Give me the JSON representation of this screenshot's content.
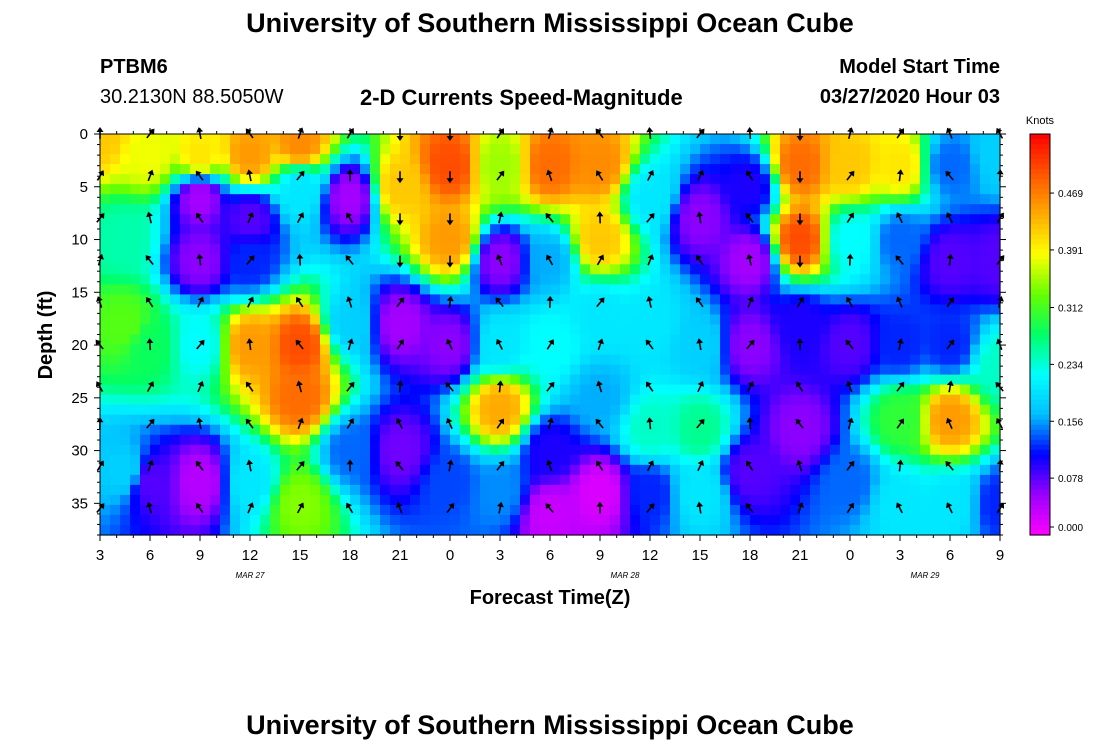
{
  "page": {
    "title_top": "University of Southern Mississippi Ocean Cube",
    "title_bottom": "University of Southern Mississippi Ocean Cube",
    "station_id": "PTBM6",
    "station_coords": "30.2130N 88.5050W",
    "subtitle": "2-D Currents Speed-Magnitude",
    "model_start_label": "Model Start Time",
    "model_start_value": "03/27/2020 Hour 03"
  },
  "chart_data": {
    "type": "heatmap",
    "title": "2-D Currents Speed-Magnitude",
    "xlabel": "Forecast Time(Z)",
    "ylabel": "Depth (ft)",
    "x_ticks": [
      "3",
      "6",
      "9",
      "12",
      "15",
      "18",
      "21",
      "0",
      "3",
      "6",
      "9",
      "12",
      "15",
      "18",
      "21",
      "0",
      "3",
      "6",
      "9"
    ],
    "date_labels": [
      {
        "text": "MAR 27",
        "at_tick": 3
      },
      {
        "text": "MAR 28",
        "at_tick": 10.5
      },
      {
        "text": "MAR 29",
        "at_tick": 16.5
      }
    ],
    "y_ticks": [
      0,
      5,
      10,
      15,
      20,
      25,
      30,
      35
    ],
    "ylim": [
      0,
      38
    ],
    "colorbar": {
      "label": "Knots",
      "ticks": [
        "0.000",
        "0.078",
        "0.156",
        "0.234",
        "0.312",
        "0.391",
        "0.469"
      ],
      "colors": [
        "#ff00ff",
        "#9a00ff",
        "#0000ff",
        "#00bfff",
        "#00ffff",
        "#00ff66",
        "#66ff00",
        "#ffff00",
        "#ffaa00",
        "#ff5500",
        "#ff0000"
      ]
    },
    "arrow_depths_ft": [
      0,
      4,
      8,
      12,
      16,
      20,
      24,
      27.5,
      31.5,
      35.5
    ],
    "value_points": [
      {
        "t": 0,
        "d": 0,
        "v": 0.42
      },
      {
        "t": 0.5,
        "d": 10,
        "v": 0.25
      },
      {
        "t": 0.5,
        "d": 18,
        "v": 0.32
      },
      {
        "t": 0.5,
        "d": 32,
        "v": 0.18
      },
      {
        "t": 1,
        "d": 2,
        "v": 0.38
      },
      {
        "t": 1,
        "d": 20,
        "v": 0.28
      },
      {
        "t": 1,
        "d": 33,
        "v": 0.08
      },
      {
        "t": 2,
        "d": 2,
        "v": 0.4
      },
      {
        "t": 2,
        "d": 6,
        "v": 0.05
      },
      {
        "t": 2,
        "d": 12,
        "v": 0.06
      },
      {
        "t": 2,
        "d": 20,
        "v": 0.22
      },
      {
        "t": 2,
        "d": 33,
        "v": 0.04
      },
      {
        "t": 3,
        "d": 2,
        "v": 0.45
      },
      {
        "t": 3,
        "d": 8,
        "v": 0.08
      },
      {
        "t": 3,
        "d": 12,
        "v": 0.12
      },
      {
        "t": 3,
        "d": 20,
        "v": 0.45
      },
      {
        "t": 3,
        "d": 33,
        "v": 0.2
      },
      {
        "t": 4,
        "d": 1,
        "v": 0.46
      },
      {
        "t": 4,
        "d": 5,
        "v": 0.2
      },
      {
        "t": 4,
        "d": 20,
        "v": 0.5
      },
      {
        "t": 4,
        "d": 25,
        "v": 0.48
      },
      {
        "t": 4,
        "d": 35,
        "v": 0.34
      },
      {
        "t": 5,
        "d": 6,
        "v": 0.05
      },
      {
        "t": 5,
        "d": 18,
        "v": 0.18
      },
      {
        "t": 5,
        "d": 30,
        "v": 0.14
      },
      {
        "t": 6,
        "d": 5,
        "v": 0.42
      },
      {
        "t": 6,
        "d": 18,
        "v": 0.05
      },
      {
        "t": 6,
        "d": 30,
        "v": 0.07
      },
      {
        "t": 7,
        "d": 3,
        "v": 0.5
      },
      {
        "t": 7,
        "d": 10,
        "v": 0.45
      },
      {
        "t": 7,
        "d": 20,
        "v": 0.06
      },
      {
        "t": 7,
        "d": 33,
        "v": 0.13
      },
      {
        "t": 8,
        "d": 3,
        "v": 0.35
      },
      {
        "t": 8,
        "d": 12,
        "v": 0.06
      },
      {
        "t": 8,
        "d": 20,
        "v": 0.2
      },
      {
        "t": 8,
        "d": 26,
        "v": 0.44
      },
      {
        "t": 8,
        "d": 34,
        "v": 0.15
      },
      {
        "t": 9,
        "d": 3,
        "v": 0.48
      },
      {
        "t": 9,
        "d": 12,
        "v": 0.16
      },
      {
        "t": 9,
        "d": 20,
        "v": 0.22
      },
      {
        "t": 9,
        "d": 30,
        "v": 0.1
      },
      {
        "t": 9,
        "d": 36,
        "v": 0.03
      },
      {
        "t": 10,
        "d": 3,
        "v": 0.46
      },
      {
        "t": 10,
        "d": 10,
        "v": 0.42
      },
      {
        "t": 10,
        "d": 17,
        "v": 0.2
      },
      {
        "t": 10,
        "d": 25,
        "v": 0.16
      },
      {
        "t": 10,
        "d": 34,
        "v": 0.02
      },
      {
        "t": 11,
        "d": 6,
        "v": 0.2
      },
      {
        "t": 11,
        "d": 18,
        "v": 0.2
      },
      {
        "t": 11,
        "d": 28,
        "v": 0.24
      },
      {
        "t": 11,
        "d": 34,
        "v": 0.12
      },
      {
        "t": 12,
        "d": 8,
        "v": 0.06
      },
      {
        "t": 12,
        "d": 20,
        "v": 0.18
      },
      {
        "t": 12,
        "d": 28,
        "v": 0.26
      },
      {
        "t": 12,
        "d": 34,
        "v": 0.2
      },
      {
        "t": 13,
        "d": 5,
        "v": 0.1
      },
      {
        "t": 13,
        "d": 12,
        "v": 0.05
      },
      {
        "t": 13,
        "d": 20,
        "v": 0.06
      },
      {
        "t": 13,
        "d": 32,
        "v": 0.08
      },
      {
        "t": 14,
        "d": 3,
        "v": 0.48
      },
      {
        "t": 14,
        "d": 10,
        "v": 0.5
      },
      {
        "t": 14,
        "d": 18,
        "v": 0.1
      },
      {
        "t": 14,
        "d": 28,
        "v": 0.06
      },
      {
        "t": 15,
        "d": 3,
        "v": 0.42
      },
      {
        "t": 15,
        "d": 10,
        "v": 0.22
      },
      {
        "t": 15,
        "d": 20,
        "v": 0.08
      },
      {
        "t": 15,
        "d": 33,
        "v": 0.14
      },
      {
        "t": 16,
        "d": 3,
        "v": 0.4
      },
      {
        "t": 16,
        "d": 10,
        "v": 0.14
      },
      {
        "t": 16,
        "d": 20,
        "v": 0.12
      },
      {
        "t": 16,
        "d": 27,
        "v": 0.3
      },
      {
        "t": 16,
        "d": 35,
        "v": 0.2
      },
      {
        "t": 17,
        "d": 3,
        "v": 0.14
      },
      {
        "t": 17,
        "d": 12,
        "v": 0.08
      },
      {
        "t": 17,
        "d": 20,
        "v": 0.12
      },
      {
        "t": 17,
        "d": 27,
        "v": 0.45
      },
      {
        "t": 17,
        "d": 35,
        "v": 0.2
      },
      {
        "t": 18,
        "d": 2,
        "v": 0.18
      },
      {
        "t": 18,
        "d": 12,
        "v": 0.08
      },
      {
        "t": 18,
        "d": 22,
        "v": 0.24
      },
      {
        "t": 18,
        "d": 35,
        "v": 0.12
      }
    ]
  }
}
